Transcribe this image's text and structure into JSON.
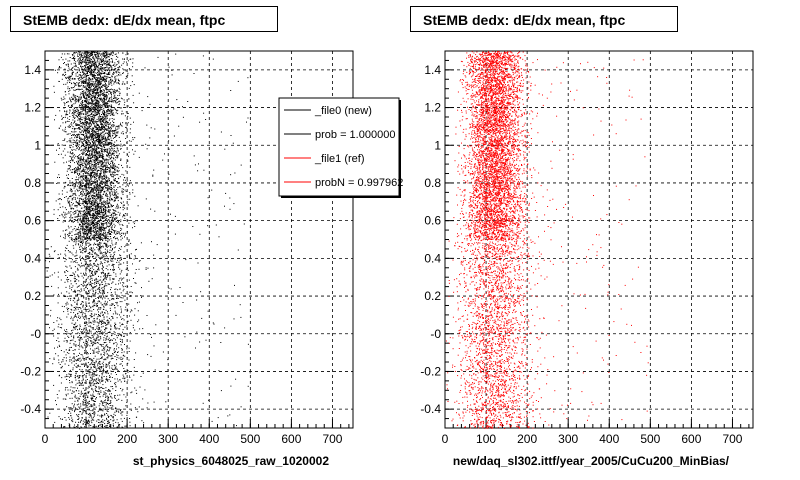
{
  "chart_data": [
    {
      "type": "scatter",
      "title": "StEMB dedx: dE/dx mean, ftpc",
      "xlabel": "st_physics_6048025_raw_1020002",
      "ylabel": "",
      "xlim": [
        0,
        750
      ],
      "ylim": [
        -0.5,
        1.5
      ],
      "x_ticks": [
        "0",
        "100",
        "200",
        "300",
        "400",
        "500",
        "600",
        "700"
      ],
      "y_ticks": [
        "-0.4",
        "-0.2",
        "-0",
        "0.2",
        "0.4",
        "0.6",
        "0.8",
        "1",
        "1.2",
        "1.4"
      ],
      "grid": true,
      "marker_color": "#000000",
      "distribution": {
        "dense_band": {
          "x_range": [
            40,
            200
          ],
          "y_range": [
            0.5,
            1.5
          ],
          "x_peak": 120
        },
        "lower_band": {
          "x_range": [
            0,
            220
          ],
          "y_range": [
            -0.5,
            0.5
          ],
          "x_peak": 120
        },
        "sparse_tail_x_max": 500
      },
      "legend": {
        "placement": "top-right",
        "entries": [
          {
            "label": "_file0 (new)",
            "color": "#000000"
          },
          {
            "label": "prob = 1.000000",
            "color": "#000000"
          },
          {
            "label": "_file1 (ref)",
            "color": "#ff0000"
          },
          {
            "label": "probN = 0.997962",
            "color": "#ff0000"
          }
        ]
      }
    },
    {
      "type": "scatter",
      "title": "StEMB dedx: dE/dx mean, ftpc",
      "xlabel": "new/daq_sl302.ittf/year_2005/CuCu200_MinBias/",
      "ylabel": "",
      "xlim": [
        0,
        750
      ],
      "ylim": [
        -0.5,
        1.5
      ],
      "x_ticks": [
        "0",
        "100",
        "200",
        "300",
        "400",
        "500",
        "600",
        "700"
      ],
      "y_ticks": [
        "-0.4",
        "-0.2",
        "-0",
        "0.2",
        "0.4",
        "0.6",
        "0.8",
        "1",
        "1.2",
        "1.4"
      ],
      "grid": true,
      "marker_color": "#ff0000",
      "distribution": {
        "dense_band": {
          "x_range": [
            40,
            200
          ],
          "y_range": [
            0.5,
            1.5
          ],
          "x_peak": 120
        },
        "lower_band": {
          "x_range": [
            0,
            220
          ],
          "y_range": [
            -0.5,
            0.5
          ],
          "x_peak": 120
        },
        "sparse_tail_x_max": 500
      }
    }
  ]
}
